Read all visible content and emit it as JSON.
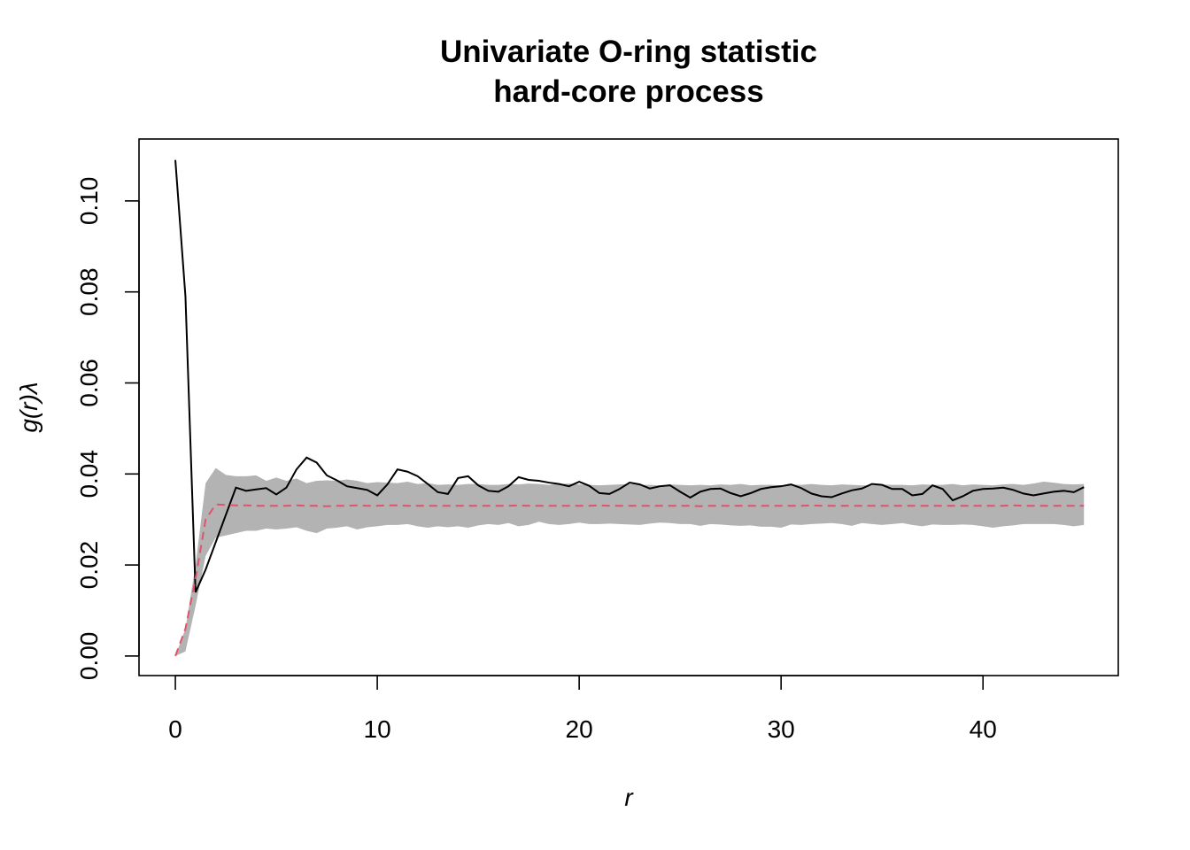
{
  "chart_data": {
    "type": "envelope-line",
    "title": [
      "Univariate O-ring statistic",
      "hard-core process"
    ],
    "x_label": "r",
    "y_label": "g(r)λ",
    "xlim": [
      -1.8,
      46.7
    ],
    "ylim": [
      -0.0043,
      0.1136
    ],
    "xticks": [
      0,
      10,
      20,
      30,
      40
    ],
    "yticks": [
      {
        "value": 0,
        "label": "0.00"
      },
      {
        "value": 0.02,
        "label": "0.02"
      },
      {
        "value": 0.04,
        "label": "0.04"
      },
      {
        "value": 0.06,
        "label": "0.06"
      },
      {
        "value": 0.08,
        "label": "0.08"
      },
      {
        "value": 0.1,
        "label": "0.10"
      }
    ],
    "x": [
      0,
      0.5,
      1,
      1.5,
      2,
      2.5,
      3,
      3.5,
      4,
      4.5,
      5,
      5.5,
      6,
      6.5,
      7,
      7.5,
      8,
      8.5,
      9,
      9.5,
      10,
      10.5,
      11,
      11.5,
      12,
      12.5,
      13,
      13.5,
      14,
      14.5,
      15,
      15.5,
      16,
      16.5,
      17,
      17.5,
      18,
      18.5,
      19,
      19.5,
      20,
      20.5,
      21,
      21.5,
      22,
      22.5,
      23,
      23.5,
      24,
      24.5,
      25,
      25.5,
      26,
      26.5,
      27,
      27.5,
      28,
      28.5,
      29,
      29.5,
      30,
      30.5,
      31,
      31.5,
      32,
      32.5,
      33,
      33.5,
      34,
      34.5,
      35,
      35.5,
      36,
      36.5,
      37,
      37.5,
      38,
      38.5,
      39,
      39.5,
      40,
      40.5,
      41,
      41.5,
      42,
      42.5,
      43,
      43.5,
      44,
      44.5,
      45
    ],
    "envelope": {
      "color": "#b3b3b3",
      "lower": [
        0,
        0.001,
        0.011,
        0.022,
        0.026,
        0.0265,
        0.027,
        0.0275,
        0.0275,
        0.028,
        0.0278,
        0.028,
        0.0283,
        0.0275,
        0.027,
        0.028,
        0.0282,
        0.0285,
        0.0278,
        0.0283,
        0.0285,
        0.0288,
        0.0288,
        0.029,
        0.0285,
        0.0282,
        0.0285,
        0.0283,
        0.0285,
        0.0282,
        0.0287,
        0.029,
        0.0288,
        0.0292,
        0.0285,
        0.0288,
        0.0295,
        0.029,
        0.0288,
        0.029,
        0.0293,
        0.029,
        0.029,
        0.0291,
        0.029,
        0.0289,
        0.0288,
        0.0291,
        0.0293,
        0.0292,
        0.029,
        0.029,
        0.0286,
        0.029,
        0.0289,
        0.0287,
        0.0286,
        0.0287,
        0.0284,
        0.0284,
        0.0282,
        0.0289,
        0.0288,
        0.029,
        0.0291,
        0.0292,
        0.029,
        0.0286,
        0.0292,
        0.029,
        0.0288,
        0.029,
        0.0292,
        0.0288,
        0.0285,
        0.0289,
        0.0288,
        0.0288,
        0.0289,
        0.0288,
        0.0285,
        0.0282,
        0.0285,
        0.0287,
        0.029,
        0.029,
        0.029,
        0.029,
        0.0288,
        0.0285,
        0.0288
      ],
      "upper": [
        0,
        0.006,
        0.02,
        0.038,
        0.0413,
        0.0398,
        0.0395,
        0.0395,
        0.0397,
        0.0385,
        0.0392,
        0.0385,
        0.039,
        0.038,
        0.0385,
        0.0386,
        0.0385,
        0.0388,
        0.0385,
        0.038,
        0.0382,
        0.0381,
        0.038,
        0.0383,
        0.0378,
        0.038,
        0.0376,
        0.0377,
        0.0376,
        0.0378,
        0.0378,
        0.0376,
        0.0376,
        0.0378,
        0.0377,
        0.0379,
        0.0378,
        0.0376,
        0.0378,
        0.0379,
        0.0377,
        0.0376,
        0.0375,
        0.0376,
        0.0377,
        0.0378,
        0.0376,
        0.0376,
        0.0375,
        0.0377,
        0.0376,
        0.0375,
        0.0376,
        0.0375,
        0.0377,
        0.0376,
        0.0378,
        0.0375,
        0.0376,
        0.0376,
        0.0375,
        0.0377,
        0.0376,
        0.0378,
        0.0376,
        0.0375,
        0.0377,
        0.0376,
        0.0375,
        0.0375,
        0.0377,
        0.0376,
        0.0376,
        0.0375,
        0.0377,
        0.0376,
        0.0376,
        0.0378,
        0.0375,
        0.0377,
        0.0376,
        0.0375,
        0.0377,
        0.0378,
        0.0376,
        0.0379,
        0.0383,
        0.0381,
        0.0378,
        0.0377,
        0.0378
      ]
    },
    "lines": [
      {
        "color": "#000000",
        "dashed": false,
        "values": [
          0.109,
          0.079,
          0.014,
          0.019,
          0.025,
          0.031,
          0.037,
          0.0363,
          0.0366,
          0.0369,
          0.0355,
          0.037,
          0.041,
          0.0436,
          0.0425,
          0.0397,
          0.0386,
          0.0373,
          0.0369,
          0.0365,
          0.0353,
          0.0377,
          0.041,
          0.0405,
          0.0395,
          0.0378,
          0.036,
          0.0356,
          0.0391,
          0.0395,
          0.0375,
          0.0363,
          0.0361,
          0.0373,
          0.0393,
          0.0387,
          0.0385,
          0.0381,
          0.0378,
          0.0373,
          0.0383,
          0.0374,
          0.0358,
          0.0356,
          0.0367,
          0.0381,
          0.0377,
          0.0368,
          0.0373,
          0.0375,
          0.0361,
          0.0348,
          0.0361,
          0.0367,
          0.0368,
          0.0358,
          0.0351,
          0.0358,
          0.0367,
          0.0371,
          0.0373,
          0.0377,
          0.0369,
          0.0357,
          0.0351,
          0.0349,
          0.0357,
          0.0364,
          0.0368,
          0.0378,
          0.0376,
          0.0367,
          0.0367,
          0.0353,
          0.0356,
          0.0375,
          0.0367,
          0.0342,
          0.0351,
          0.0363,
          0.0367,
          0.0368,
          0.037,
          0.0365,
          0.0357,
          0.0353,
          0.0357,
          0.0361,
          0.0363,
          0.036,
          0.0371
        ]
      },
      {
        "color": "#DF536B",
        "dashed": true,
        "values": [
          0,
          0.006,
          0.017,
          0.03,
          0.0333,
          0.0332,
          0.0331,
          0.0331,
          0.033,
          0.033,
          0.033,
          0.033,
          0.0331,
          0.033,
          0.033,
          0.0329,
          0.033,
          0.033,
          0.0331,
          0.033,
          0.033,
          0.0331,
          0.0331,
          0.033,
          0.033,
          0.033,
          0.033,
          0.033,
          0.033,
          0.033,
          0.033,
          0.033,
          0.033,
          0.033,
          0.0331,
          0.033,
          0.033,
          0.033,
          0.033,
          0.033,
          0.033,
          0.033,
          0.0331,
          0.033,
          0.033,
          0.033,
          0.033,
          0.033,
          0.033,
          0.033,
          0.033,
          0.033,
          0.0329,
          0.033,
          0.033,
          0.033,
          0.033,
          0.033,
          0.033,
          0.033,
          0.033,
          0.033,
          0.033,
          0.0331,
          0.033,
          0.033,
          0.033,
          0.033,
          0.033,
          0.033,
          0.033,
          0.033,
          0.033,
          0.033,
          0.033,
          0.033,
          0.033,
          0.033,
          0.033,
          0.033,
          0.033,
          0.033,
          0.033,
          0.0331,
          0.033,
          0.033,
          0.033,
          0.033,
          0.033,
          0.033,
          0.033
        ]
      }
    ]
  }
}
